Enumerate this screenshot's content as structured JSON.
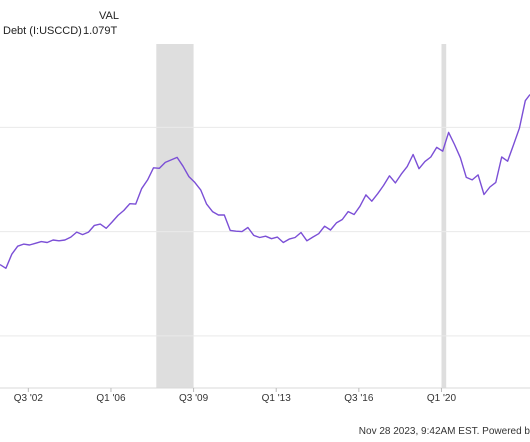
{
  "legend": {
    "value_header": "VAL",
    "series_name": "Debt (I:USCCD)",
    "series_value": "1.079T"
  },
  "footer": {
    "text": "Nov 28 2023, 9:42AM EST. Powered b"
  },
  "colors": {
    "line": "#7b4fd6",
    "recession": "#dedede",
    "grid": "#e9e9e9",
    "axis": "#d8d8d8"
  },
  "chart_data": {
    "type": "line",
    "title": "",
    "xlabel": "",
    "ylabel": "",
    "x_tick_labels": [
      "Q3 '02",
      "Q1 '06",
      "Q3 '09",
      "Q1 '13",
      "Q3 '16",
      "Q1 '20"
    ],
    "x_tick_values": [
      2002.5,
      2006.0,
      2009.5,
      2013.0,
      2016.5,
      2020.0
    ],
    "xlim": [
      2001.3,
      2023.75
    ],
    "ylim": [
      0.375,
      1.2
    ],
    "grid_y": [
      0.5,
      0.75,
      1.0
    ],
    "grid": true,
    "recessions": [
      [
        2007.92,
        2009.5
      ],
      [
        2020.0,
        2020.2
      ]
    ],
    "series": [
      {
        "name": "Debt (I:USCCD)",
        "x": [
          2001.3,
          2001.55,
          2001.8,
          2002.05,
          2002.3,
          2002.55,
          2002.8,
          2003.05,
          2003.3,
          2003.55,
          2003.8,
          2004.05,
          2004.3,
          2004.55,
          2004.8,
          2005.05,
          2005.3,
          2005.55,
          2005.8,
          2006.05,
          2006.3,
          2006.55,
          2006.8,
          2007.05,
          2007.3,
          2007.55,
          2007.8,
          2008.05,
          2008.3,
          2008.55,
          2008.8,
          2009.05,
          2009.3,
          2009.55,
          2009.8,
          2010.05,
          2010.3,
          2010.55,
          2010.8,
          2011.05,
          2011.3,
          2011.55,
          2011.8,
          2012.05,
          2012.3,
          2012.55,
          2012.8,
          2013.05,
          2013.3,
          2013.55,
          2013.8,
          2014.05,
          2014.3,
          2014.55,
          2014.8,
          2015.05,
          2015.3,
          2015.55,
          2015.8,
          2016.05,
          2016.3,
          2016.55,
          2016.8,
          2017.05,
          2017.3,
          2017.55,
          2017.8,
          2018.05,
          2018.3,
          2018.55,
          2018.8,
          2019.05,
          2019.3,
          2019.55,
          2019.8,
          2020.05,
          2020.3,
          2020.55,
          2020.8,
          2021.05,
          2021.3,
          2021.55,
          2021.8,
          2022.05,
          2022.3,
          2022.55,
          2022.8,
          2023.05,
          2023.3,
          2023.55,
          2023.75
        ],
        "values": [
          0.671,
          0.662,
          0.696,
          0.715,
          0.72,
          0.718,
          0.722,
          0.726,
          0.724,
          0.73,
          0.728,
          0.73,
          0.737,
          0.749,
          0.743,
          0.749,
          0.765,
          0.768,
          0.758,
          0.773,
          0.789,
          0.801,
          0.817,
          0.816,
          0.853,
          0.874,
          0.903,
          0.902,
          0.916,
          0.922,
          0.928,
          0.907,
          0.882,
          0.868,
          0.85,
          0.816,
          0.798,
          0.79,
          0.79,
          0.753,
          0.751,
          0.75,
          0.76,
          0.741,
          0.736,
          0.739,
          0.733,
          0.737,
          0.724,
          0.732,
          0.736,
          0.748,
          0.728,
          0.737,
          0.745,
          0.763,
          0.754,
          0.771,
          0.779,
          0.798,
          0.791,
          0.811,
          0.838,
          0.823,
          0.841,
          0.861,
          0.884,
          0.867,
          0.888,
          0.906,
          0.935,
          0.901,
          0.918,
          0.929,
          0.952,
          0.943,
          0.988,
          0.959,
          0.927,
          0.88,
          0.874,
          0.886,
          0.839,
          0.857,
          0.868,
          0.929,
          0.919,
          0.958,
          0.998,
          1.064,
          1.079
        ]
      }
    ]
  }
}
